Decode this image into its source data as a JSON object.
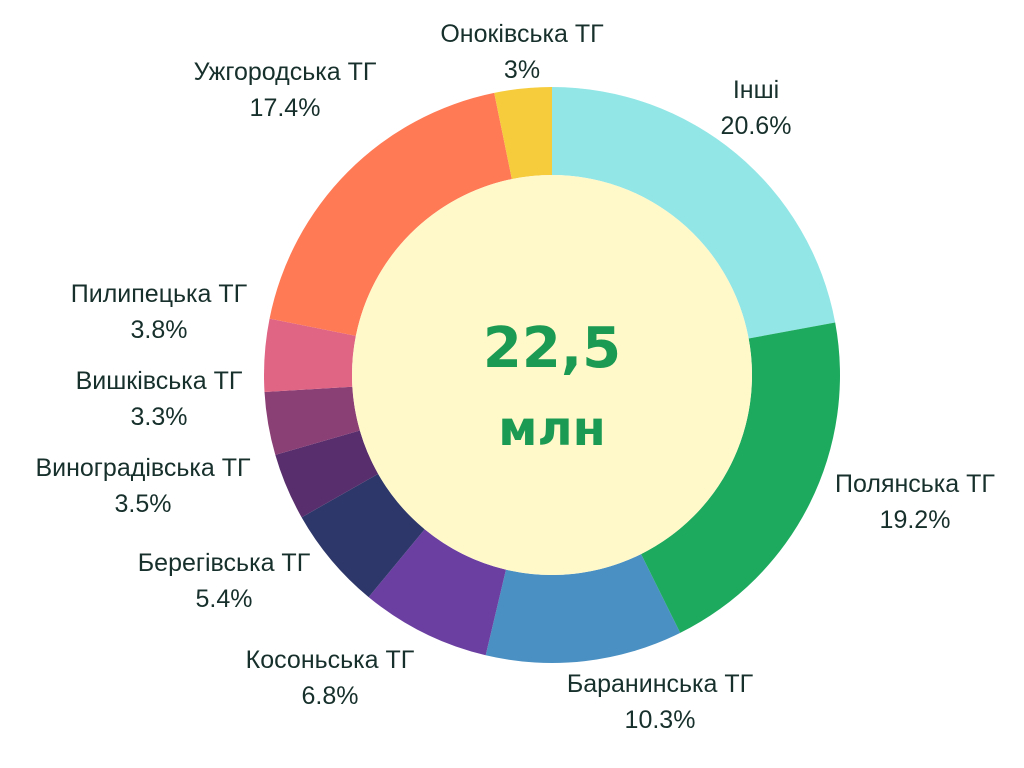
{
  "chart_data": {
    "type": "pie",
    "donut": true,
    "center": {
      "value": "22,5",
      "unit": "млн"
    },
    "slices": [
      {
        "label": "Інші",
        "value_text": "20.6%",
        "value": 20.6,
        "color": "#93e6e6"
      },
      {
        "label": "Полянська ТГ",
        "value_text": "19.2%",
        "value": 19.2,
        "color": "#1daa5e"
      },
      {
        "label": "Баранинська ТГ",
        "value_text": "10.3%",
        "value": 10.3,
        "color": "#4a90c2"
      },
      {
        "label": "Косоньська ТГ",
        "value_text": "6.8%",
        "value": 6.8,
        "color": "#6b3fa2"
      },
      {
        "label": "Берегівська ТГ",
        "value_text": "5.4%",
        "value": 5.4,
        "color": "#2e3769"
      },
      {
        "label": "Виноградівська ТГ",
        "value_text": "3.5%",
        "value": 3.5,
        "color": "#582f6c"
      },
      {
        "label": "Вишківська ТГ",
        "value_text": "3.3%",
        "value": 3.3,
        "color": "#8a3f75"
      },
      {
        "label": "Пилипецька ТГ",
        "value_text": "3.8%",
        "value": 3.8,
        "color": "#c45081"
      },
      {
        "label": "Ужгородська ТГ",
        "value_text": "17.4%",
        "value": 17.4,
        "color": "#ea6179"
      },
      {
        "label": "Онoківська ТГ",
        "value_text": "3%",
        "value": 3.0,
        "color": "#fa7d5c"
      }
    ],
    "extra_colors": [
      "#f6cc3c"
    ],
    "inner_fill": "#fff8c9"
  }
}
